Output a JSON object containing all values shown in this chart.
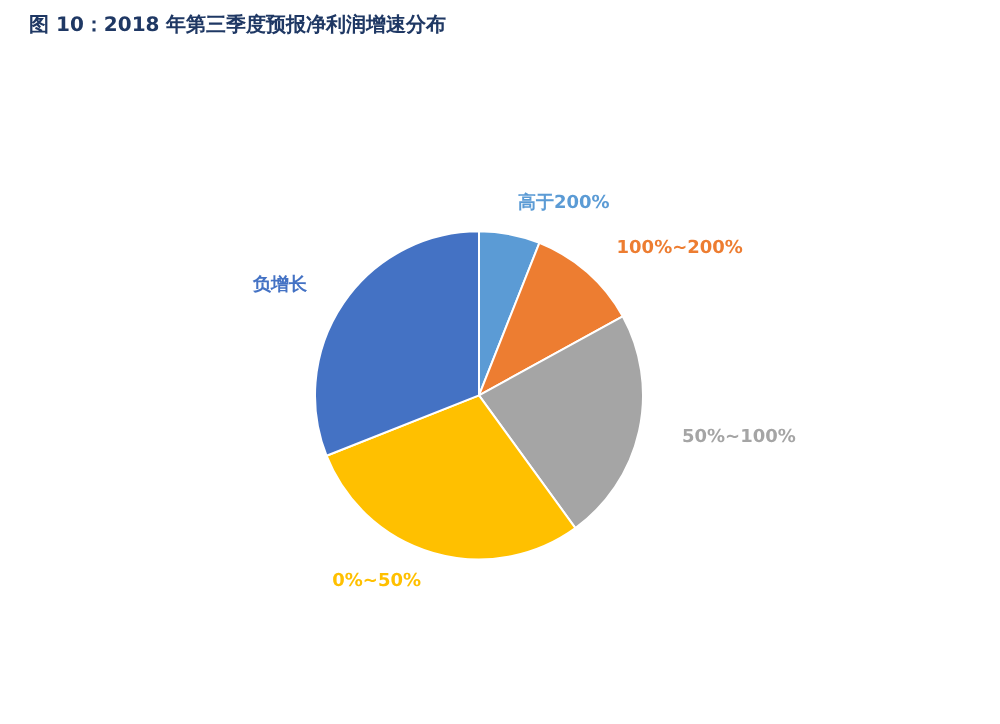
{
  "chart_data": {
    "type": "pie",
    "title": "图 10：2018 年第三季度预报净利润增速分布",
    "categories": [
      "高于200%",
      "100%~200%",
      "50%~100%",
      "0%~50%",
      "负增长"
    ],
    "values": [
      6,
      11,
      23,
      29,
      31
    ],
    "colors": [
      "#5b9bd5",
      "#ed7d31",
      "#a5a5a5",
      "#ffc000",
      "#4472c4"
    ]
  }
}
